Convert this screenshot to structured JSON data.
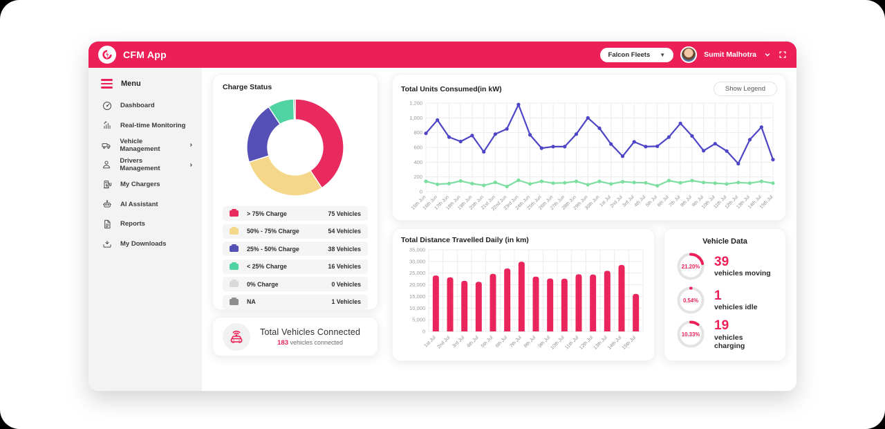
{
  "header": {
    "app_name": "CFM App",
    "fleet_selector": "Falcon Fleets",
    "user_name": "Sumit Malhotra"
  },
  "sidebar": {
    "menu_label": "Menu",
    "items": [
      {
        "label": "Dashboard",
        "icon": "dashboard-icon",
        "has_submenu": false
      },
      {
        "label": "Real-time Monitoring",
        "icon": "monitoring-icon",
        "has_submenu": false
      },
      {
        "label": "Vehicle Management",
        "icon": "vehicle-icon",
        "has_submenu": true
      },
      {
        "label": "Drivers Management",
        "icon": "drivers-icon",
        "has_submenu": true
      },
      {
        "label": "My Chargers",
        "icon": "charger-icon",
        "has_submenu": false
      },
      {
        "label": "AI Assistant",
        "icon": "robot-icon",
        "has_submenu": false
      },
      {
        "label": "Reports",
        "icon": "report-icon",
        "has_submenu": false
      },
      {
        "label": "My Downloads",
        "icon": "download-icon",
        "has_submenu": false
      }
    ]
  },
  "charge_status": {
    "title": "Charge Status",
    "legend": [
      {
        "label": "> 75% Charge",
        "value": 75,
        "value_text": "75 Vehicles",
        "color": "#E82A5F"
      },
      {
        "label": "50% - 75% Charge",
        "value": 54,
        "value_text": "54 Vehicles",
        "color": "#F4D789"
      },
      {
        "label": "25% - 50% Charge",
        "value": 38,
        "value_text": "38 Vehicles",
        "color": "#5550B5"
      },
      {
        "label": "< 25% Charge",
        "value": 16,
        "value_text": "16 Vehicles",
        "color": "#50D3A3"
      },
      {
        "label": "0% Charge",
        "value": 0,
        "value_text": "0 Vehicles",
        "color": "#D9D9D9"
      },
      {
        "label": "NA",
        "value": 1,
        "value_text": "1 Vehicles",
        "color": "#8E8E8E"
      }
    ]
  },
  "vehicles_connected": {
    "title": "Total Vehicles Connected",
    "count": "183",
    "suffix": " vehicles connected"
  },
  "units_chart": {
    "title": "Total Units Consumed(in kW)",
    "show_legend_label": "Show Legend",
    "type": "line",
    "ylim": [
      0,
      1200
    ],
    "ystep": 200,
    "ytick_labels": [
      "0",
      "200",
      "400",
      "600",
      "800",
      "1,000",
      "1,200"
    ],
    "categories": [
      "15th Jun",
      "16th Jun",
      "17th Jun",
      "18th Jun",
      "19th Jun",
      "20th Jun",
      "21st Jun",
      "22nd Jun",
      "23rd Jun",
      "24th Jun",
      "25th Jun",
      "26th Jun",
      "27th Jun",
      "28th Jun",
      "29th Jun",
      "30th Jun",
      "1st Jul",
      "2nd Jul",
      "3rd Jul",
      "4th Jul",
      "5th Jul",
      "6th Jul",
      "7th Jul",
      "8th Jul",
      "9th Jul",
      "10th Jul",
      "11th Jul",
      "12th Jul",
      "13th Jul",
      "14th Jul",
      "15th Jul"
    ],
    "series": [
      {
        "name": "series-purple",
        "color": "#4D45C6",
        "values": [
          790,
          970,
          740,
          680,
          760,
          540,
          780,
          850,
          1180,
          770,
          590,
          610,
          610,
          780,
          1000,
          860,
          645,
          480,
          675,
          610,
          615,
          740,
          925,
          755,
          555,
          650,
          550,
          380,
          705,
          875,
          435
        ]
      },
      {
        "name": "series-green",
        "color": "#7CDE9F",
        "values": [
          140,
          100,
          110,
          145,
          110,
          85,
          125,
          70,
          155,
          105,
          140,
          115,
          120,
          140,
          95,
          140,
          105,
          135,
          125,
          120,
          80,
          150,
          120,
          150,
          125,
          115,
          105,
          125,
          115,
          140,
          115
        ]
      }
    ]
  },
  "distance_chart": {
    "title": "Total Distance Travelled Daily (in km)",
    "type": "bar",
    "bar_color": "#E9255C",
    "ylim": [
      0,
      35000
    ],
    "ystep": 5000,
    "ytick_labels": [
      "0",
      "5,000",
      "10,000",
      "15,000",
      "20,000",
      "25,000",
      "30,000",
      "35,000"
    ],
    "categories": [
      "1st Jul",
      "2nd Jul",
      "3rd Jul",
      "4th Jul",
      "5th Jul",
      "6th Jul",
      "7th Jul",
      "8th Jul",
      "9th Jul",
      "10th Jul",
      "11th Jul",
      "12th Jul",
      "13th Jul",
      "14th Jul",
      "15th Jul"
    ],
    "values": [
      24000,
      23200,
      21700,
      21300,
      24700,
      27000,
      29900,
      23500,
      22700,
      22600,
      24500,
      24400,
      26000,
      28500,
      16100
    ]
  },
  "vehicle_data": {
    "title": "Vehicle Data",
    "stats": [
      {
        "percent_text": "21.20%",
        "percent": 21.2,
        "value": "39",
        "label": "vehicles moving"
      },
      {
        "percent_text": "0.54%",
        "percent": 0.54,
        "value": "1",
        "label": "vehicles idle"
      },
      {
        "percent_text": "10.33%",
        "percent": 10.33,
        "value": "19",
        "label": "vehicles charging"
      }
    ]
  },
  "colors": {
    "accent": "#EC2057",
    "sidebar_bg": "#F4F3F3",
    "grid": "#ECECEC",
    "tick": "#9a9a9a"
  }
}
